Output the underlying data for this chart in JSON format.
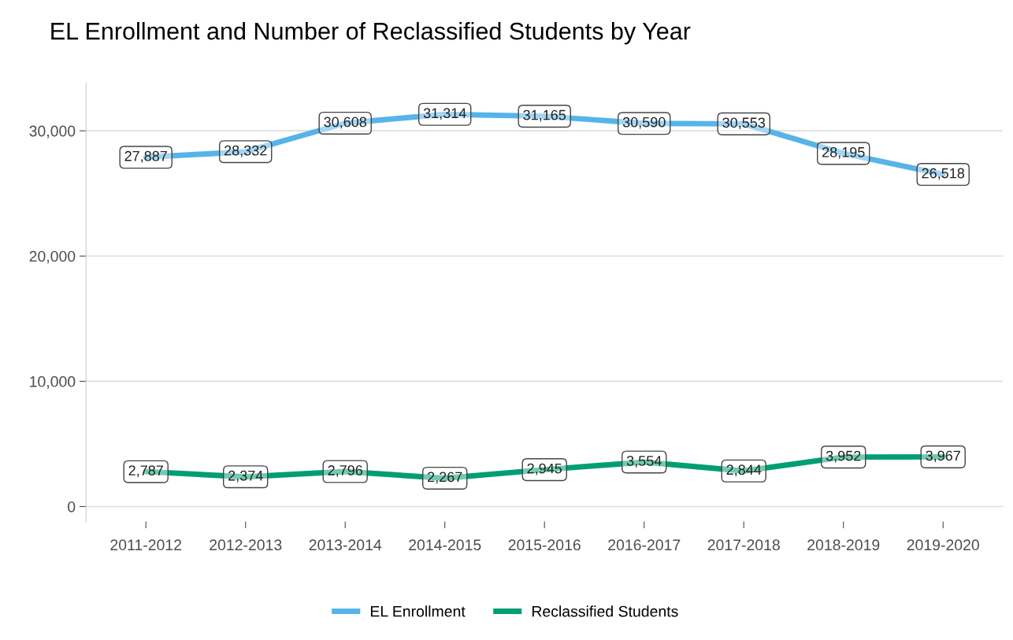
{
  "chart_data": {
    "type": "line",
    "title": "EL Enrollment and Number of Reclassified Students by Year",
    "categories": [
      "2011-2012",
      "2012-2013",
      "2013-2014",
      "2014-2015",
      "2015-2016",
      "2016-2017",
      "2017-2018",
      "2018-2019",
      "2019-2020"
    ],
    "series": [
      {
        "name": "EL Enrollment",
        "color": "#56b4e9",
        "values": [
          27887,
          28332,
          30608,
          31314,
          31165,
          30590,
          30553,
          28195,
          26518
        ],
        "value_labels": [
          "27,887",
          "28,332",
          "30,608",
          "31,314",
          "31,165",
          "30,590",
          "30,553",
          "28,195",
          "26,518"
        ]
      },
      {
        "name": "Reclassified Students",
        "color": "#009e73",
        "values": [
          2787,
          2374,
          2796,
          2267,
          2945,
          3554,
          2844,
          3952,
          3967
        ],
        "value_labels": [
          "2,787",
          "2,374",
          "2,796",
          "2,267",
          "2,945",
          "3,554",
          "2,844",
          "3,952",
          "3,967"
        ]
      }
    ],
    "ylim": [
      -1200,
      33800
    ],
    "yticks": [
      {
        "value": 0,
        "label": "0"
      },
      {
        "value": 10000,
        "label": "10,000"
      },
      {
        "value": 20000,
        "label": "20,000"
      },
      {
        "value": 30000,
        "label": "30,000"
      }
    ],
    "grid": "y",
    "legend": "bottom",
    "line_style": "solid"
  }
}
